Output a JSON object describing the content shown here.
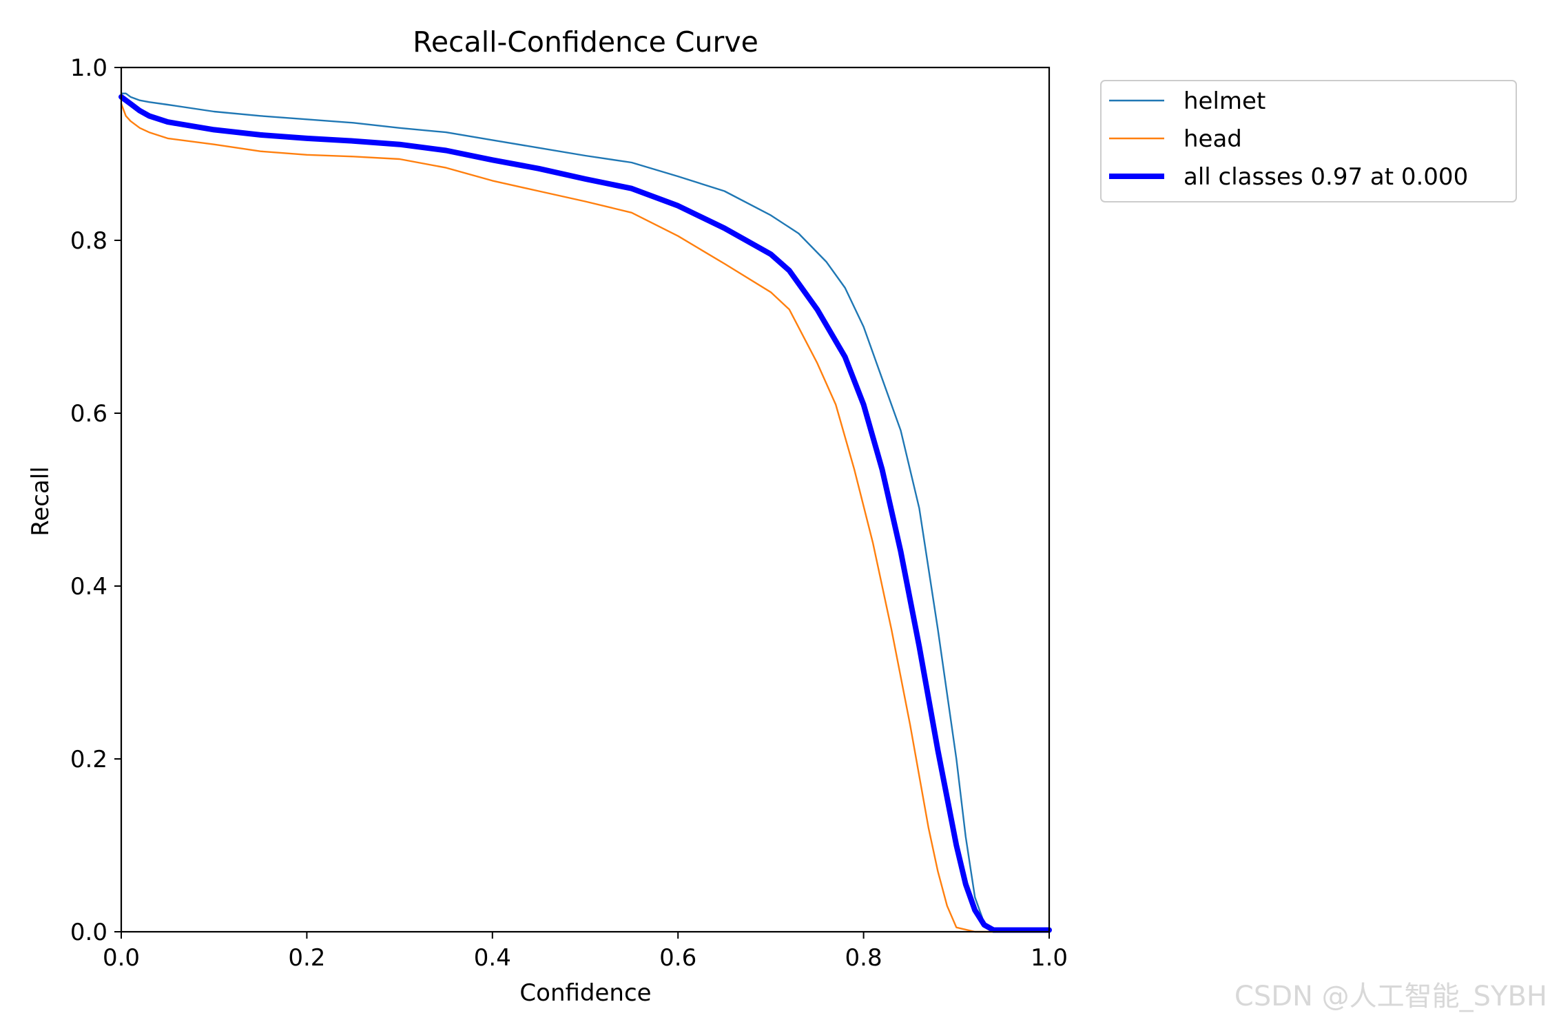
{
  "watermark": "CSDN @人工智能_SYBH",
  "chart_data": {
    "type": "line",
    "title": "Recall-Confidence Curve",
    "xlabel": "Confidence",
    "ylabel": "Recall",
    "xlim": [
      0,
      1
    ],
    "ylim": [
      0,
      1
    ],
    "xticks": [
      "0.0",
      "0.2",
      "0.4",
      "0.6",
      "0.8",
      "1.0"
    ],
    "yticks": [
      "0.0",
      "0.2",
      "0.4",
      "0.6",
      "0.8",
      "1.0"
    ],
    "grid": false,
    "legend_position": "outside-upper-right",
    "series": [
      {
        "name": "helmet",
        "color": "#1f77b4",
        "points": [
          [
            0.0,
            0.97
          ],
          [
            0.005,
            0.97
          ],
          [
            0.01,
            0.966
          ],
          [
            0.02,
            0.962
          ],
          [
            0.03,
            0.96
          ],
          [
            0.05,
            0.957
          ],
          [
            0.1,
            0.949
          ],
          [
            0.15,
            0.944
          ],
          [
            0.2,
            0.94
          ],
          [
            0.25,
            0.936
          ],
          [
            0.3,
            0.93
          ],
          [
            0.35,
            0.925
          ],
          [
            0.4,
            0.916
          ],
          [
            0.45,
            0.907
          ],
          [
            0.5,
            0.898
          ],
          [
            0.55,
            0.89
          ],
          [
            0.6,
            0.874
          ],
          [
            0.65,
            0.857
          ],
          [
            0.7,
            0.829
          ],
          [
            0.73,
            0.808
          ],
          [
            0.76,
            0.775
          ],
          [
            0.78,
            0.745
          ],
          [
            0.8,
            0.7
          ],
          [
            0.82,
            0.64
          ],
          [
            0.84,
            0.58
          ],
          [
            0.86,
            0.49
          ],
          [
            0.88,
            0.35
          ],
          [
            0.9,
            0.2
          ],
          [
            0.91,
            0.11
          ],
          [
            0.92,
            0.04
          ],
          [
            0.93,
            0.01
          ],
          [
            0.94,
            0.002
          ],
          [
            1.0,
            0.002
          ]
        ]
      },
      {
        "name": "head",
        "color": "#ff7f0e",
        "points": [
          [
            0.0,
            0.958
          ],
          [
            0.005,
            0.944
          ],
          [
            0.01,
            0.938
          ],
          [
            0.02,
            0.93
          ],
          [
            0.03,
            0.925
          ],
          [
            0.05,
            0.918
          ],
          [
            0.1,
            0.911
          ],
          [
            0.15,
            0.903
          ],
          [
            0.2,
            0.899
          ],
          [
            0.25,
            0.897
          ],
          [
            0.3,
            0.894
          ],
          [
            0.35,
            0.884
          ],
          [
            0.4,
            0.869
          ],
          [
            0.45,
            0.857
          ],
          [
            0.5,
            0.845
          ],
          [
            0.55,
            0.832
          ],
          [
            0.6,
            0.805
          ],
          [
            0.65,
            0.773
          ],
          [
            0.7,
            0.74
          ],
          [
            0.72,
            0.72
          ],
          [
            0.75,
            0.658
          ],
          [
            0.77,
            0.61
          ],
          [
            0.79,
            0.535
          ],
          [
            0.81,
            0.45
          ],
          [
            0.83,
            0.35
          ],
          [
            0.85,
            0.24
          ],
          [
            0.87,
            0.12
          ],
          [
            0.88,
            0.07
          ],
          [
            0.89,
            0.03
          ],
          [
            0.9,
            0.005
          ],
          [
            0.92,
            0.0
          ],
          [
            1.0,
            0.0
          ]
        ]
      },
      {
        "name": "all classes 0.97 at 0.000",
        "color": "#0000ff",
        "points": [
          [
            0.0,
            0.966
          ],
          [
            0.01,
            0.958
          ],
          [
            0.02,
            0.95
          ],
          [
            0.03,
            0.944
          ],
          [
            0.05,
            0.937
          ],
          [
            0.1,
            0.928
          ],
          [
            0.15,
            0.922
          ],
          [
            0.2,
            0.918
          ],
          [
            0.25,
            0.915
          ],
          [
            0.3,
            0.911
          ],
          [
            0.35,
            0.904
          ],
          [
            0.4,
            0.893
          ],
          [
            0.45,
            0.883
          ],
          [
            0.5,
            0.871
          ],
          [
            0.55,
            0.86
          ],
          [
            0.6,
            0.84
          ],
          [
            0.65,
            0.814
          ],
          [
            0.7,
            0.784
          ],
          [
            0.72,
            0.765
          ],
          [
            0.75,
            0.72
          ],
          [
            0.78,
            0.665
          ],
          [
            0.8,
            0.61
          ],
          [
            0.82,
            0.535
          ],
          [
            0.84,
            0.44
          ],
          [
            0.86,
            0.33
          ],
          [
            0.88,
            0.21
          ],
          [
            0.9,
            0.1
          ],
          [
            0.91,
            0.055
          ],
          [
            0.92,
            0.025
          ],
          [
            0.93,
            0.008
          ],
          [
            0.94,
            0.002
          ],
          [
            1.0,
            0.002
          ]
        ]
      }
    ]
  }
}
